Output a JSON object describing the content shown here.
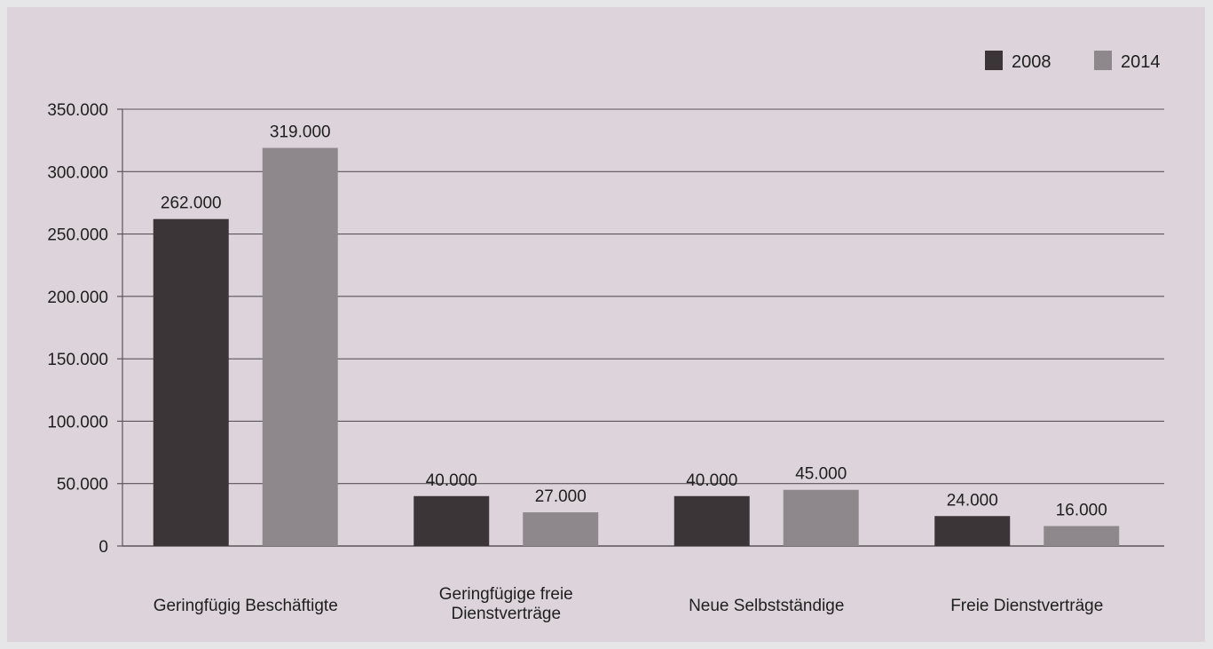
{
  "chart_data": {
    "type": "bar",
    "categories": [
      [
        "Geringfügig Beschäftigte"
      ],
      [
        "Geringfügige freie",
        "Dienstverträge"
      ],
      [
        "Neue Selbstständige"
      ],
      [
        "Freie Dienstverträge"
      ]
    ],
    "series": [
      {
        "name": "2008",
        "color": "#3b3537",
        "values": [
          262000,
          40000,
          40000,
          24000
        ],
        "labels": [
          "262.000",
          "40.000",
          "40.000",
          "24.000"
        ]
      },
      {
        "name": "2014",
        "color": "#8e888c",
        "values": [
          319000,
          27000,
          45000,
          16000
        ],
        "labels": [
          "319.000",
          "27.000",
          "45.000",
          "16.000"
        ]
      }
    ],
    "y_ticks": [
      0,
      50000,
      100000,
      150000,
      200000,
      250000,
      300000,
      350000
    ],
    "y_tick_labels": [
      "0",
      "50.000",
      "100.000",
      "150.000",
      "200.000",
      "250.000",
      "300.000",
      "350.000"
    ],
    "ylim": [
      0,
      350000
    ],
    "grid": true,
    "legend_position": "top-right",
    "title": "",
    "xlabel": "",
    "ylabel": ""
  },
  "colors": {
    "background": "#dcd4da",
    "gridline": "#5a5558",
    "text": "#1e1e1e"
  }
}
